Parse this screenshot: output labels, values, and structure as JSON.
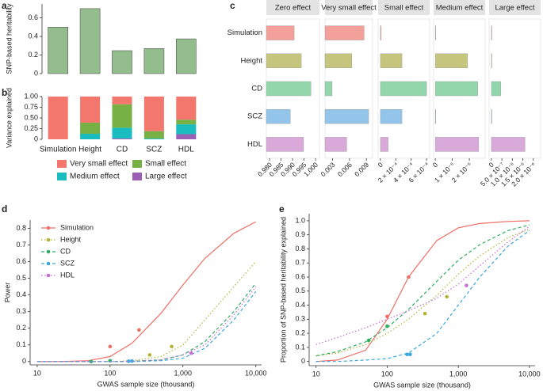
{
  "chart_data": [
    {
      "type": "bar",
      "label": "a",
      "ylabel": "SNP-based heritability",
      "values": [
        0.5,
        0.7,
        0.247,
        0.27,
        0.374
      ],
      "color": "#93bd8c",
      "ylim": [
        0,
        0.75
      ],
      "yticks": [
        0,
        0.2,
        0.4,
        0.6
      ]
    },
    {
      "type": "stacked_bar",
      "label": "b",
      "ylabel": "Variance explained",
      "categories": [
        "Simulation",
        "Height",
        "CD",
        "SCZ",
        "HDL"
      ],
      "series": [
        {
          "name": "Very small effect",
          "color": "#f4776d",
          "values": [
            1.0,
            0.61,
            0.18,
            0.81,
            0.54
          ]
        },
        {
          "name": "Small effect",
          "color": "#77b044",
          "values": [
            0,
            0.26,
            0.55,
            0.17,
            0.11
          ]
        },
        {
          "name": "Medium effect",
          "color": "#1bbcbf",
          "values": [
            0,
            0.13,
            0.25,
            0.02,
            0.23
          ]
        },
        {
          "name": "Large effect",
          "color": "#9b5fb5",
          "values": [
            0,
            0,
            0.02,
            0,
            0.12
          ]
        }
      ],
      "ylim": [
        0,
        1
      ],
      "yticks": [
        0,
        0.25,
        {
          "value": 0.5,
          "label": "0.50"
        },
        0.75,
        {
          "value": 1,
          "label": "1.00"
        }
      ]
    },
    {
      "type": "facet_hbar",
      "label": "c",
      "categories": [
        "Simulation",
        "Height",
        "CD",
        "SCZ",
        "HDL"
      ],
      "colors": [
        "#f4a09a",
        "#c6c57e",
        "#93d6ab",
        "#93c5ea",
        "#d9a9d9"
      ],
      "facets": [
        {
          "title": "Zero effect",
          "values": [
            0.9907,
            0.9938,
            0.998,
            0.989,
            0.9948
          ],
          "xlim": [
            0.9786,
            1.0017
          ],
          "xticks": [
            {
              "value": 0.98,
              "label": "0.980"
            },
            0.985,
            {
              "value": 0.99,
              "label": "0.990"
            },
            0.995,
            {
              "value": 1,
              "label": "1.000"
            }
          ]
        },
        {
          "title": "Very small effect",
          "values": [
            0.0086,
            0.0064,
            0.0029,
            0.0094,
            0.0055
          ],
          "xlim": [
            0.00164,
            0.0101
          ],
          "xticks": [
            0.003,
            0.006,
            0.009
          ]
        },
        {
          "title": "Small effect",
          "values": [
            1e-05,
            0.00028,
            0.0006,
            0.00028,
            0.0001
          ],
          "xlim": [
            -3e-05,
            0.00064
          ],
          "xticks": [
            0,
            {
              "value": 0.0002,
              "label": "2 × 10⁻⁴"
            },
            {
              "value": 0.0004,
              "label": "4 × 10⁻⁴"
            },
            {
              "value": 0.0006,
              "label": "6 × 10⁻⁴"
            }
          ]
        },
        {
          "title": "Medium effect",
          "values": [
            3e-07,
            1.9e-05,
            2.5e-05,
            2e-07,
            2.55e-05
          ],
          "xlim": [
            -1e-06,
            2.93e-05
          ],
          "xticks": [
            0,
            {
              "value": 1e-05,
              "label": "1 × 10⁻⁵"
            },
            {
              "value": 2e-05,
              "label": "2 × 10⁻⁵"
            }
          ]
        },
        {
          "title": "Large effect",
          "values": [
            0,
            1e-08,
            4.5e-07,
            0,
            1.6e-06
          ],
          "xlim": [
            -1.1e-07,
            2.35e-06
          ],
          "xticks": [
            0,
            {
              "value": 5e-07,
              "label": "5.0 × 10⁻⁷"
            },
            {
              "value": 1e-06,
              "label": "1.0 × 10⁻⁶"
            },
            {
              "value": 1.5e-06,
              "label": "1.5 × 10⁻⁶"
            },
            {
              "value": 2e-06,
              "label": "2.0 × 10⁻⁶"
            }
          ]
        }
      ]
    },
    {
      "type": "line",
      "label": "d",
      "xlabel": "GWAS sample size (thousand)",
      "ylabel": "Power",
      "xscale": "log",
      "xlim": [
        8,
        12000
      ],
      "xticks": [
        10,
        100,
        {
          "value": 1000,
          "label": "1,000"
        },
        {
          "value": 10000,
          "label": "10,000"
        }
      ],
      "ylim": [
        -0.02,
        0.85
      ],
      "yticks": [
        0,
        0.1,
        0.2,
        0.3,
        0.4,
        0.5,
        0.6,
        0.7,
        0.8
      ],
      "legend": "upper left",
      "series": [
        {
          "name": "Simulation",
          "color": "#ef6f66",
          "dash": "solid",
          "x": [
            10,
            20,
            50,
            100,
            200,
            500,
            1000,
            2000,
            5000,
            10000
          ],
          "values": [
            0,
            0,
            0.005,
            0.03,
            0.11,
            0.29,
            0.46,
            0.62,
            0.77,
            0.84
          ],
          "points": {
            "x": [
              100,
              250
            ],
            "y": [
              0.09,
              0.19
            ]
          }
        },
        {
          "name": "Height",
          "color": "#b3b336",
          "dash": "dotted",
          "x": [
            10,
            20,
            50,
            100,
            200,
            500,
            1000,
            2000,
            5000,
            10000
          ],
          "values": [
            0,
            0,
            0,
            0,
            0.005,
            0.03,
            0.1,
            0.25,
            0.45,
            0.6
          ],
          "points": {
            "x": [
              350,
              700
            ],
            "y": [
              0.04,
              0.09
            ]
          }
        },
        {
          "name": "CD",
          "color": "#2fae61",
          "dash": "dashed",
          "x": [
            10,
            20,
            50,
            100,
            200,
            500,
            1000,
            2000,
            5000,
            10000
          ],
          "values": [
            0,
            0,
            0,
            0,
            0.002,
            0.01,
            0.04,
            0.12,
            0.3,
            0.47
          ],
          "points": {
            "x": [
              55,
              100
            ],
            "y": [
              0,
              0.005
            ]
          }
        },
        {
          "name": "SCZ",
          "color": "#3aa8e0",
          "dash": "dashed",
          "x": [
            10,
            20,
            50,
            100,
            200,
            500,
            1000,
            2000,
            5000,
            10000
          ],
          "values": [
            0,
            0,
            0,
            0,
            0,
            0.005,
            0.02,
            0.08,
            0.25,
            0.42
          ],
          "points": {
            "x": [
              180,
              200
            ],
            "y": [
              0.002,
              0.003
            ]
          }
        },
        {
          "name": "HDL",
          "color": "#c86fd6",
          "dash": "dotted",
          "x": [
            10,
            20,
            50,
            100,
            200,
            500,
            1000,
            2000,
            5000,
            10000
          ],
          "values": [
            0,
            0,
            0,
            0,
            0.002,
            0.01,
            0.04,
            0.1,
            0.28,
            0.45
          ],
          "points": {
            "x": [
              1300
            ],
            "y": [
              0.05
            ]
          }
        }
      ]
    },
    {
      "type": "line",
      "label": "e",
      "xlabel": "GWAS sample size (thousand)",
      "ylabel": "Proportion of SNP-based heritability explained",
      "xscale": "log",
      "xlim": [
        8,
        12000
      ],
      "xticks": [
        10,
        100,
        {
          "value": 1000,
          "label": "1,000"
        },
        {
          "value": 10000,
          "label": "10,000"
        }
      ],
      "ylim": [
        -0.03,
        1.05
      ],
      "yticks": [
        0,
        0.1,
        0.2,
        0.3,
        0.4,
        0.5,
        0.6,
        0.7,
        0.8,
        0.9,
        {
          "value": 1,
          "label": "1.0"
        }
      ],
      "series": [
        {
          "color": "#ef6f66",
          "dash": "solid",
          "x": [
            10,
            20,
            50,
            100,
            200,
            500,
            1000,
            2000,
            5000,
            10000
          ],
          "values": [
            0,
            0.01,
            0.08,
            0.3,
            0.6,
            0.86,
            0.95,
            0.98,
            0.995,
            1.0
          ],
          "points": {
            "x": [
              100,
              200
            ],
            "y": [
              0.32,
              0.6
            ]
          }
        },
        {
          "color": "#b3b336",
          "dash": "dotted",
          "x": [
            10,
            20,
            50,
            100,
            200,
            500,
            1000,
            2000,
            5000,
            10000
          ],
          "values": [
            0.04,
            0.06,
            0.12,
            0.2,
            0.3,
            0.47,
            0.62,
            0.75,
            0.88,
            0.94
          ],
          "points": {
            "x": [
              340,
              690
            ],
            "y": [
              0.34,
              0.46
            ]
          }
        },
        {
          "color": "#2fae61",
          "dash": "dashed",
          "x": [
            10,
            20,
            50,
            100,
            200,
            500,
            1000,
            2000,
            5000,
            10000
          ],
          "values": [
            0.04,
            0.07,
            0.14,
            0.24,
            0.37,
            0.57,
            0.72,
            0.83,
            0.93,
            0.97
          ],
          "points": {
            "x": [
              55,
              100
            ],
            "y": [
              0.15,
              0.25
            ]
          }
        },
        {
          "color": "#3aa8e0",
          "dash": "dashed",
          "x": [
            10,
            20,
            50,
            100,
            200,
            500,
            1000,
            2000,
            5000,
            10000
          ],
          "values": [
            0,
            0,
            0.01,
            0.02,
            0.06,
            0.2,
            0.4,
            0.6,
            0.82,
            0.93
          ],
          "points": {
            "x": [
              190,
              210
            ],
            "y": [
              0.05,
              0.05
            ]
          }
        },
        {
          "color": "#c86fd6",
          "dash": "dotted",
          "x": [
            10,
            20,
            50,
            100,
            200,
            500,
            1000,
            2000,
            5000,
            10000
          ],
          "values": [
            0.12,
            0.17,
            0.24,
            0.3,
            0.36,
            0.45,
            0.55,
            0.68,
            0.85,
            0.96
          ],
          "points": {
            "x": [
              1300
            ],
            "y": [
              0.54
            ]
          }
        }
      ]
    }
  ]
}
